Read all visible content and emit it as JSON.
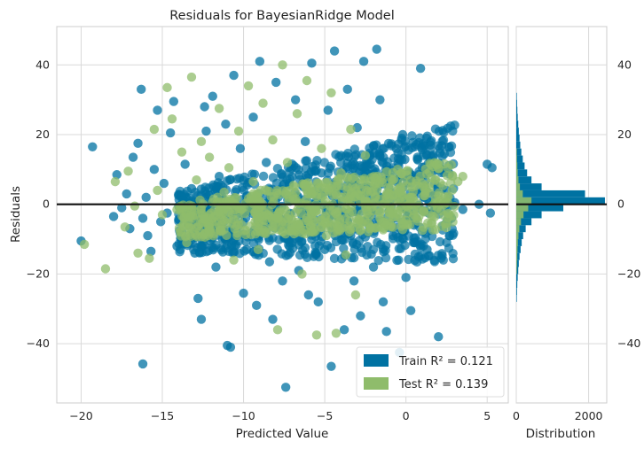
{
  "chart_data": {
    "type": "scatter",
    "title": "Residuals for BayesianRidge Model",
    "xlabel": "Predicted Value",
    "ylabel": "Residuals",
    "xlim": [
      -21.5,
      6.3
    ],
    "ylim": [
      -57,
      51
    ],
    "xticks": [
      -20,
      -15,
      -10,
      -5,
      0,
      5
    ],
    "yticks": [
      -40,
      -20,
      0,
      20,
      40
    ],
    "grid": true,
    "legend_position": "lower-right",
    "zero_line": 0,
    "series": [
      {
        "name": "Train",
        "r2_text": "Train R² = 0.121",
        "color": "#0072a2",
        "points": [
          [
            -20.0,
            -10.5
          ],
          [
            -19.3,
            16.5
          ],
          [
            -18.0,
            -3.5
          ],
          [
            -17.8,
            8.5
          ],
          [
            -17.5,
            -1.0
          ],
          [
            -17.2,
            3.0
          ],
          [
            -17.0,
            -7.0
          ],
          [
            -16.8,
            13.5
          ],
          [
            -16.5,
            17.5
          ],
          [
            -16.2,
            -4.0
          ],
          [
            -16.0,
            2.0
          ],
          [
            -16.2,
            -45.8
          ],
          [
            -16.3,
            33.0
          ],
          [
            -15.9,
            -9.0
          ],
          [
            -15.7,
            -13.5
          ],
          [
            -15.5,
            10.0
          ],
          [
            -15.3,
            27.0
          ],
          [
            -15.1,
            -5.0
          ],
          [
            -14.9,
            6.0
          ],
          [
            -14.7,
            -2.5
          ],
          [
            -14.5,
            20.5
          ],
          [
            -14.3,
            29.5
          ],
          [
            -14.1,
            -12.0
          ],
          [
            -14.0,
            2.5
          ],
          [
            -13.8,
            -8.0
          ],
          [
            -13.6,
            11.5
          ],
          [
            -13.4,
            -6.0
          ],
          [
            -13.2,
            4.5
          ],
          [
            -13.0,
            -14.0
          ],
          [
            -12.8,
            -27.0
          ],
          [
            -12.6,
            -33.0
          ],
          [
            -12.4,
            28.0
          ],
          [
            -12.3,
            21.0
          ],
          [
            -12.1,
            -2.0
          ],
          [
            -11.9,
            31.0
          ],
          [
            -11.7,
            -18.0
          ],
          [
            -11.5,
            8.0
          ],
          [
            -11.3,
            -10.0
          ],
          [
            -11.1,
            23.0
          ],
          [
            -11.0,
            -40.5
          ],
          [
            -10.8,
            -41.0
          ],
          [
            -10.6,
            37.0
          ],
          [
            -10.4,
            -3.0
          ],
          [
            -10.2,
            16.0
          ],
          [
            -10.0,
            -25.5
          ],
          [
            -9.8,
            -13.0
          ],
          [
            -9.6,
            -1.0
          ],
          [
            -9.4,
            25.0
          ],
          [
            -9.2,
            -29.0
          ],
          [
            -9.0,
            41.0
          ],
          [
            -8.8,
            -7.0
          ],
          [
            -8.6,
            12.0
          ],
          [
            -8.4,
            -16.5
          ],
          [
            -8.2,
            -33.0
          ],
          [
            -8.0,
            35.0
          ],
          [
            -7.8,
            -4.0
          ],
          [
            -7.6,
            -22.0
          ],
          [
            -7.4,
            -52.5
          ],
          [
            -7.2,
            6.0
          ],
          [
            -7.0,
            -11.0
          ],
          [
            -6.8,
            30.0
          ],
          [
            -6.6,
            -19.0
          ],
          [
            -6.4,
            -2.5
          ],
          [
            -6.2,
            18.0
          ],
          [
            -6.0,
            -26.0
          ],
          [
            -5.8,
            40.5
          ],
          [
            -5.6,
            -7.5
          ],
          [
            -5.4,
            -28.0
          ],
          [
            -5.2,
            9.0
          ],
          [
            -5.0,
            -13.0
          ],
          [
            -4.8,
            27.0
          ],
          [
            -4.6,
            -46.5
          ],
          [
            -4.4,
            44.0
          ],
          [
            -4.2,
            -3.5
          ],
          [
            -4.0,
            14.0
          ],
          [
            -3.8,
            -36.0
          ],
          [
            -3.6,
            33.0
          ],
          [
            -3.4,
            -9.0
          ],
          [
            -3.2,
            -22.0
          ],
          [
            -3.0,
            22.0
          ],
          [
            -2.8,
            -32.0
          ],
          [
            -2.6,
            41.0
          ],
          [
            -2.4,
            -4.5
          ],
          [
            -2.2,
            11.5
          ],
          [
            -2.0,
            -18.0
          ],
          [
            -1.8,
            44.5
          ],
          [
            -1.6,
            30.0
          ],
          [
            -1.4,
            -28.0
          ],
          [
            -1.2,
            -36.5
          ],
          [
            -1.0,
            8.0
          ],
          [
            -0.8,
            -9.0
          ],
          [
            -0.6,
            16.0
          ],
          [
            -0.4,
            -42.5
          ],
          [
            -0.2,
            20.0
          ],
          [
            0.0,
            -21.0
          ],
          [
            0.3,
            -30.5
          ],
          [
            0.5,
            -6.0
          ],
          [
            0.7,
            13.0
          ],
          [
            0.9,
            39.0
          ],
          [
            1.1,
            2.0
          ],
          [
            1.3,
            -13.0
          ],
          [
            1.5,
            17.0
          ],
          [
            1.8,
            -1.0
          ],
          [
            2.0,
            -38.0
          ],
          [
            2.2,
            10.0
          ],
          [
            2.5,
            4.0
          ],
          [
            2.8,
            -4.0
          ],
          [
            3.0,
            0.5
          ],
          [
            3.5,
            -1.5
          ],
          [
            4.5,
            0.0
          ],
          [
            5.0,
            11.5
          ],
          [
            5.2,
            -2.5
          ],
          [
            5.3,
            10.5
          ]
        ]
      },
      {
        "name": "Test",
        "r2_text": "Test R² = 0.139",
        "color": "#8fbc6b",
        "points": [
          [
            -19.8,
            -11.5
          ],
          [
            -18.5,
            -18.5
          ],
          [
            -17.9,
            6.5
          ],
          [
            -17.3,
            -6.5
          ],
          [
            -17.1,
            9.5
          ],
          [
            -16.7,
            -0.5
          ],
          [
            -16.5,
            -14.0
          ],
          [
            -15.8,
            -15.5
          ],
          [
            -15.5,
            21.5
          ],
          [
            -15.3,
            4.0
          ],
          [
            -15.0,
            -3.0
          ],
          [
            -14.7,
            33.5
          ],
          [
            -14.4,
            24.5
          ],
          [
            -14.1,
            -1.5
          ],
          [
            -13.8,
            15.0
          ],
          [
            -13.5,
            -11.0
          ],
          [
            -13.2,
            36.5
          ],
          [
            -12.9,
            7.0
          ],
          [
            -12.6,
            18.0
          ],
          [
            -12.4,
            -8.5
          ],
          [
            -12.1,
            13.5
          ],
          [
            -11.8,
            -5.0
          ],
          [
            -11.5,
            27.5
          ],
          [
            -11.2,
            3.5
          ],
          [
            -10.9,
            10.5
          ],
          [
            -10.6,
            -16.0
          ],
          [
            -10.3,
            21.0
          ],
          [
            -10.0,
            -1.0
          ],
          [
            -9.7,
            34.0
          ],
          [
            -9.4,
            6.5
          ],
          [
            -9.1,
            -13.0
          ],
          [
            -8.8,
            29.0
          ],
          [
            -8.5,
            -3.0
          ],
          [
            -8.2,
            18.5
          ],
          [
            -7.9,
            -36.0
          ],
          [
            -7.6,
            40.0
          ],
          [
            -7.3,
            12.0
          ],
          [
            -7.0,
            -7.5
          ],
          [
            -6.7,
            26.0
          ],
          [
            -6.4,
            -20.0
          ],
          [
            -6.1,
            35.5
          ],
          [
            -5.8,
            3.0
          ],
          [
            -5.5,
            -37.5
          ],
          [
            -5.2,
            16.0
          ],
          [
            -4.9,
            -9.0
          ],
          [
            -4.6,
            32.0
          ],
          [
            -4.3,
            -37.0
          ],
          [
            -4.0,
            9.0
          ],
          [
            -3.7,
            -14.5
          ],
          [
            -3.4,
            21.5
          ],
          [
            -3.1,
            -26.0
          ],
          [
            -2.8,
            2.5
          ],
          [
            -2.5,
            14.0
          ],
          [
            -2.2,
            -7.0
          ],
          [
            -1.9,
            7.5
          ],
          [
            -1.6,
            -4.0
          ],
          [
            -1.2,
            1.5
          ],
          [
            -0.8,
            -2.5
          ],
          [
            -0.4,
            3.5
          ],
          [
            0.0,
            -0.5
          ],
          [
            0.4,
            2.0
          ],
          [
            0.8,
            -3.5
          ],
          [
            1.2,
            4.0
          ],
          [
            2.0,
            2.5
          ],
          [
            3.2,
            6.5
          ],
          [
            3.5,
            8.0
          ]
        ]
      }
    ],
    "histogram": {
      "xlabel": "Distribution",
      "xticks": [
        0,
        2000
      ],
      "xlim": [
        0,
        2500
      ],
      "bin_width": 2,
      "train_bins": [
        [
          -28,
          15
        ],
        [
          -26,
          20
        ],
        [
          -24,
          28
        ],
        [
          -22,
          40
        ],
        [
          -20,
          55
        ],
        [
          -18,
          70
        ],
        [
          -16,
          90
        ],
        [
          -14,
          120
        ],
        [
          -12,
          150
        ],
        [
          -10,
          190
        ],
        [
          -8,
          260
        ],
        [
          -6,
          420
        ],
        [
          -4,
          700
        ],
        [
          -2,
          1300
        ],
        [
          0,
          2450
        ],
        [
          2,
          1900
        ],
        [
          4,
          700
        ],
        [
          6,
          420
        ],
        [
          8,
          300
        ],
        [
          10,
          230
        ],
        [
          12,
          180
        ],
        [
          14,
          140
        ],
        [
          16,
          110
        ],
        [
          18,
          90
        ],
        [
          20,
          70
        ],
        [
          22,
          55
        ],
        [
          24,
          40
        ],
        [
          26,
          30
        ],
        [
          28,
          22
        ],
        [
          30,
          15
        ]
      ],
      "test_bins": [
        [
          -20,
          15
        ],
        [
          -18,
          20
        ],
        [
          -16,
          28
        ],
        [
          -14,
          35
        ],
        [
          -12,
          45
        ],
        [
          -10,
          60
        ],
        [
          -8,
          85
        ],
        [
          -6,
          130
        ],
        [
          -4,
          200
        ],
        [
          -2,
          330
        ],
        [
          0,
          420
        ],
        [
          2,
          180
        ],
        [
          4,
          100
        ],
        [
          6,
          60
        ],
        [
          8,
          40
        ],
        [
          10,
          30
        ],
        [
          12,
          20
        ],
        [
          14,
          15
        ]
      ]
    }
  }
}
